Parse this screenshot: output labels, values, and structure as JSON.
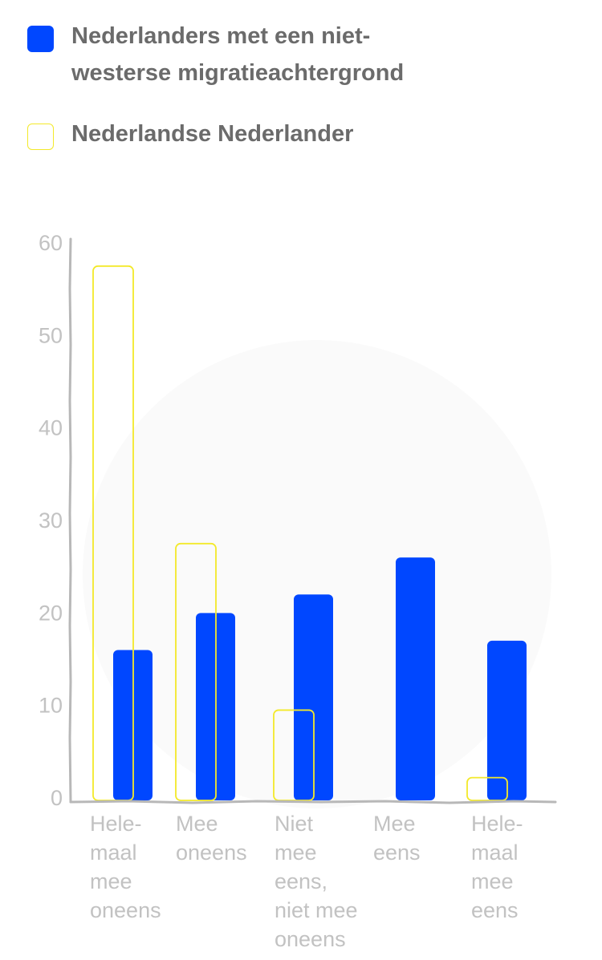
{
  "legend": {
    "items": [
      {
        "label": "Nederlanders met een niet-westerse migratieachtergrond",
        "style": "filled",
        "color": "#0047ff"
      },
      {
        "label": "Nederlandse Nederlander",
        "style": "outline",
        "color": "#f3e92a"
      }
    ]
  },
  "chart_data": {
    "type": "bar",
    "categories": [
      [
        "Hele-",
        "maal",
        "mee",
        "oneens"
      ],
      [
        "Mee",
        "oneens"
      ],
      [
        "Niet",
        "mee",
        "eens,",
        "niet mee",
        "oneens"
      ],
      [
        "Mee",
        "eens"
      ],
      [
        "Hele-",
        "maal",
        "mee",
        "eens"
      ]
    ],
    "series": [
      {
        "name": "Nederlandse Nederlander",
        "values": [
          57.5,
          27.5,
          9.5,
          0,
          2.2
        ],
        "color": "#f3e92a",
        "style": "outline"
      },
      {
        "name": "Nederlanders met een niet-westerse migratieachtergrond",
        "values": [
          16,
          20,
          22,
          26,
          17
        ],
        "color": "#0047ff",
        "style": "filled"
      }
    ],
    "yticks": [
      0,
      10,
      20,
      30,
      40,
      50,
      60
    ],
    "ylim": [
      0,
      60
    ],
    "grid": false,
    "legend_position": "top-left",
    "title": "",
    "xlabel": "",
    "ylabel": ""
  }
}
